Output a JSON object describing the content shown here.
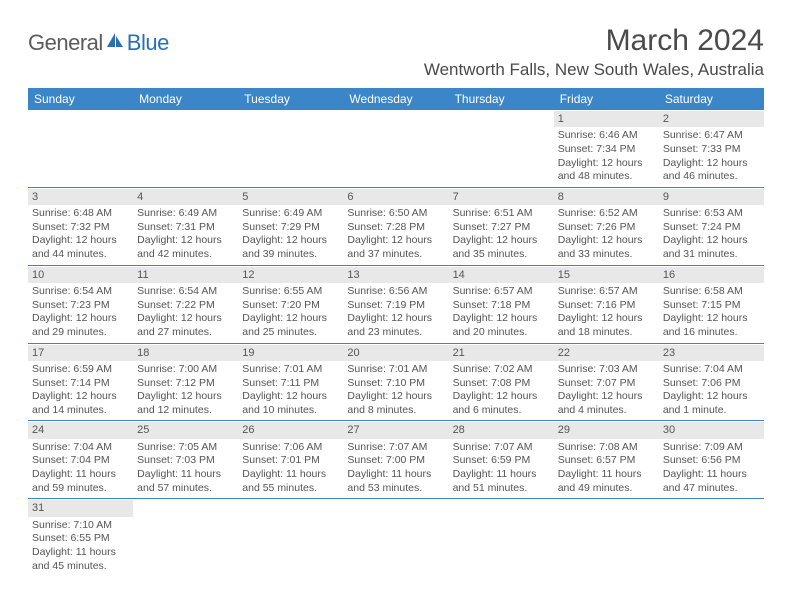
{
  "logo": {
    "part1": "General",
    "part2": "Blue"
  },
  "title": "March 2024",
  "location": "Wentworth Falls, New South Wales, Australia",
  "colors": {
    "header_bg": "#3a86c8",
    "header_text": "#ffffff",
    "daynum_bg": "#e8e8e8",
    "cell_border": "#3a86c8",
    "body_text": "#555555",
    "logo_blue": "#2a6fb5",
    "logo_gray": "#5c5c5c"
  },
  "day_headers": [
    "Sunday",
    "Monday",
    "Tuesday",
    "Wednesday",
    "Thursday",
    "Friday",
    "Saturday"
  ],
  "weeks": [
    [
      {
        "n": "",
        "sr": "",
        "ss": "",
        "d1": "",
        "d2": ""
      },
      {
        "n": "",
        "sr": "",
        "ss": "",
        "d1": "",
        "d2": ""
      },
      {
        "n": "",
        "sr": "",
        "ss": "",
        "d1": "",
        "d2": ""
      },
      {
        "n": "",
        "sr": "",
        "ss": "",
        "d1": "",
        "d2": ""
      },
      {
        "n": "",
        "sr": "",
        "ss": "",
        "d1": "",
        "d2": ""
      },
      {
        "n": "1",
        "sr": "Sunrise: 6:46 AM",
        "ss": "Sunset: 7:34 PM",
        "d1": "Daylight: 12 hours",
        "d2": "and 48 minutes."
      },
      {
        "n": "2",
        "sr": "Sunrise: 6:47 AM",
        "ss": "Sunset: 7:33 PM",
        "d1": "Daylight: 12 hours",
        "d2": "and 46 minutes."
      }
    ],
    [
      {
        "n": "3",
        "sr": "Sunrise: 6:48 AM",
        "ss": "Sunset: 7:32 PM",
        "d1": "Daylight: 12 hours",
        "d2": "and 44 minutes."
      },
      {
        "n": "4",
        "sr": "Sunrise: 6:49 AM",
        "ss": "Sunset: 7:31 PM",
        "d1": "Daylight: 12 hours",
        "d2": "and 42 minutes."
      },
      {
        "n": "5",
        "sr": "Sunrise: 6:49 AM",
        "ss": "Sunset: 7:29 PM",
        "d1": "Daylight: 12 hours",
        "d2": "and 39 minutes."
      },
      {
        "n": "6",
        "sr": "Sunrise: 6:50 AM",
        "ss": "Sunset: 7:28 PM",
        "d1": "Daylight: 12 hours",
        "d2": "and 37 minutes."
      },
      {
        "n": "7",
        "sr": "Sunrise: 6:51 AM",
        "ss": "Sunset: 7:27 PM",
        "d1": "Daylight: 12 hours",
        "d2": "and 35 minutes."
      },
      {
        "n": "8",
        "sr": "Sunrise: 6:52 AM",
        "ss": "Sunset: 7:26 PM",
        "d1": "Daylight: 12 hours",
        "d2": "and 33 minutes."
      },
      {
        "n": "9",
        "sr": "Sunrise: 6:53 AM",
        "ss": "Sunset: 7:24 PM",
        "d1": "Daylight: 12 hours",
        "d2": "and 31 minutes."
      }
    ],
    [
      {
        "n": "10",
        "sr": "Sunrise: 6:54 AM",
        "ss": "Sunset: 7:23 PM",
        "d1": "Daylight: 12 hours",
        "d2": "and 29 minutes."
      },
      {
        "n": "11",
        "sr": "Sunrise: 6:54 AM",
        "ss": "Sunset: 7:22 PM",
        "d1": "Daylight: 12 hours",
        "d2": "and 27 minutes."
      },
      {
        "n": "12",
        "sr": "Sunrise: 6:55 AM",
        "ss": "Sunset: 7:20 PM",
        "d1": "Daylight: 12 hours",
        "d2": "and 25 minutes."
      },
      {
        "n": "13",
        "sr": "Sunrise: 6:56 AM",
        "ss": "Sunset: 7:19 PM",
        "d1": "Daylight: 12 hours",
        "d2": "and 23 minutes."
      },
      {
        "n": "14",
        "sr": "Sunrise: 6:57 AM",
        "ss": "Sunset: 7:18 PM",
        "d1": "Daylight: 12 hours",
        "d2": "and 20 minutes."
      },
      {
        "n": "15",
        "sr": "Sunrise: 6:57 AM",
        "ss": "Sunset: 7:16 PM",
        "d1": "Daylight: 12 hours",
        "d2": "and 18 minutes."
      },
      {
        "n": "16",
        "sr": "Sunrise: 6:58 AM",
        "ss": "Sunset: 7:15 PM",
        "d1": "Daylight: 12 hours",
        "d2": "and 16 minutes."
      }
    ],
    [
      {
        "n": "17",
        "sr": "Sunrise: 6:59 AM",
        "ss": "Sunset: 7:14 PM",
        "d1": "Daylight: 12 hours",
        "d2": "and 14 minutes."
      },
      {
        "n": "18",
        "sr": "Sunrise: 7:00 AM",
        "ss": "Sunset: 7:12 PM",
        "d1": "Daylight: 12 hours",
        "d2": "and 12 minutes."
      },
      {
        "n": "19",
        "sr": "Sunrise: 7:01 AM",
        "ss": "Sunset: 7:11 PM",
        "d1": "Daylight: 12 hours",
        "d2": "and 10 minutes."
      },
      {
        "n": "20",
        "sr": "Sunrise: 7:01 AM",
        "ss": "Sunset: 7:10 PM",
        "d1": "Daylight: 12 hours",
        "d2": "and 8 minutes."
      },
      {
        "n": "21",
        "sr": "Sunrise: 7:02 AM",
        "ss": "Sunset: 7:08 PM",
        "d1": "Daylight: 12 hours",
        "d2": "and 6 minutes."
      },
      {
        "n": "22",
        "sr": "Sunrise: 7:03 AM",
        "ss": "Sunset: 7:07 PM",
        "d1": "Daylight: 12 hours",
        "d2": "and 4 minutes."
      },
      {
        "n": "23",
        "sr": "Sunrise: 7:04 AM",
        "ss": "Sunset: 7:06 PM",
        "d1": "Daylight: 12 hours",
        "d2": "and 1 minute."
      }
    ],
    [
      {
        "n": "24",
        "sr": "Sunrise: 7:04 AM",
        "ss": "Sunset: 7:04 PM",
        "d1": "Daylight: 11 hours",
        "d2": "and 59 minutes."
      },
      {
        "n": "25",
        "sr": "Sunrise: 7:05 AM",
        "ss": "Sunset: 7:03 PM",
        "d1": "Daylight: 11 hours",
        "d2": "and 57 minutes."
      },
      {
        "n": "26",
        "sr": "Sunrise: 7:06 AM",
        "ss": "Sunset: 7:01 PM",
        "d1": "Daylight: 11 hours",
        "d2": "and 55 minutes."
      },
      {
        "n": "27",
        "sr": "Sunrise: 7:07 AM",
        "ss": "Sunset: 7:00 PM",
        "d1": "Daylight: 11 hours",
        "d2": "and 53 minutes."
      },
      {
        "n": "28",
        "sr": "Sunrise: 7:07 AM",
        "ss": "Sunset: 6:59 PM",
        "d1": "Daylight: 11 hours",
        "d2": "and 51 minutes."
      },
      {
        "n": "29",
        "sr": "Sunrise: 7:08 AM",
        "ss": "Sunset: 6:57 PM",
        "d1": "Daylight: 11 hours",
        "d2": "and 49 minutes."
      },
      {
        "n": "30",
        "sr": "Sunrise: 7:09 AM",
        "ss": "Sunset: 6:56 PM",
        "d1": "Daylight: 11 hours",
        "d2": "and 47 minutes."
      }
    ],
    [
      {
        "n": "31",
        "sr": "Sunrise: 7:10 AM",
        "ss": "Sunset: 6:55 PM",
        "d1": "Daylight: 11 hours",
        "d2": "and 45 minutes."
      },
      {
        "n": "",
        "sr": "",
        "ss": "",
        "d1": "",
        "d2": ""
      },
      {
        "n": "",
        "sr": "",
        "ss": "",
        "d1": "",
        "d2": ""
      },
      {
        "n": "",
        "sr": "",
        "ss": "",
        "d1": "",
        "d2": ""
      },
      {
        "n": "",
        "sr": "",
        "ss": "",
        "d1": "",
        "d2": ""
      },
      {
        "n": "",
        "sr": "",
        "ss": "",
        "d1": "",
        "d2": ""
      },
      {
        "n": "",
        "sr": "",
        "ss": "",
        "d1": "",
        "d2": ""
      }
    ]
  ]
}
